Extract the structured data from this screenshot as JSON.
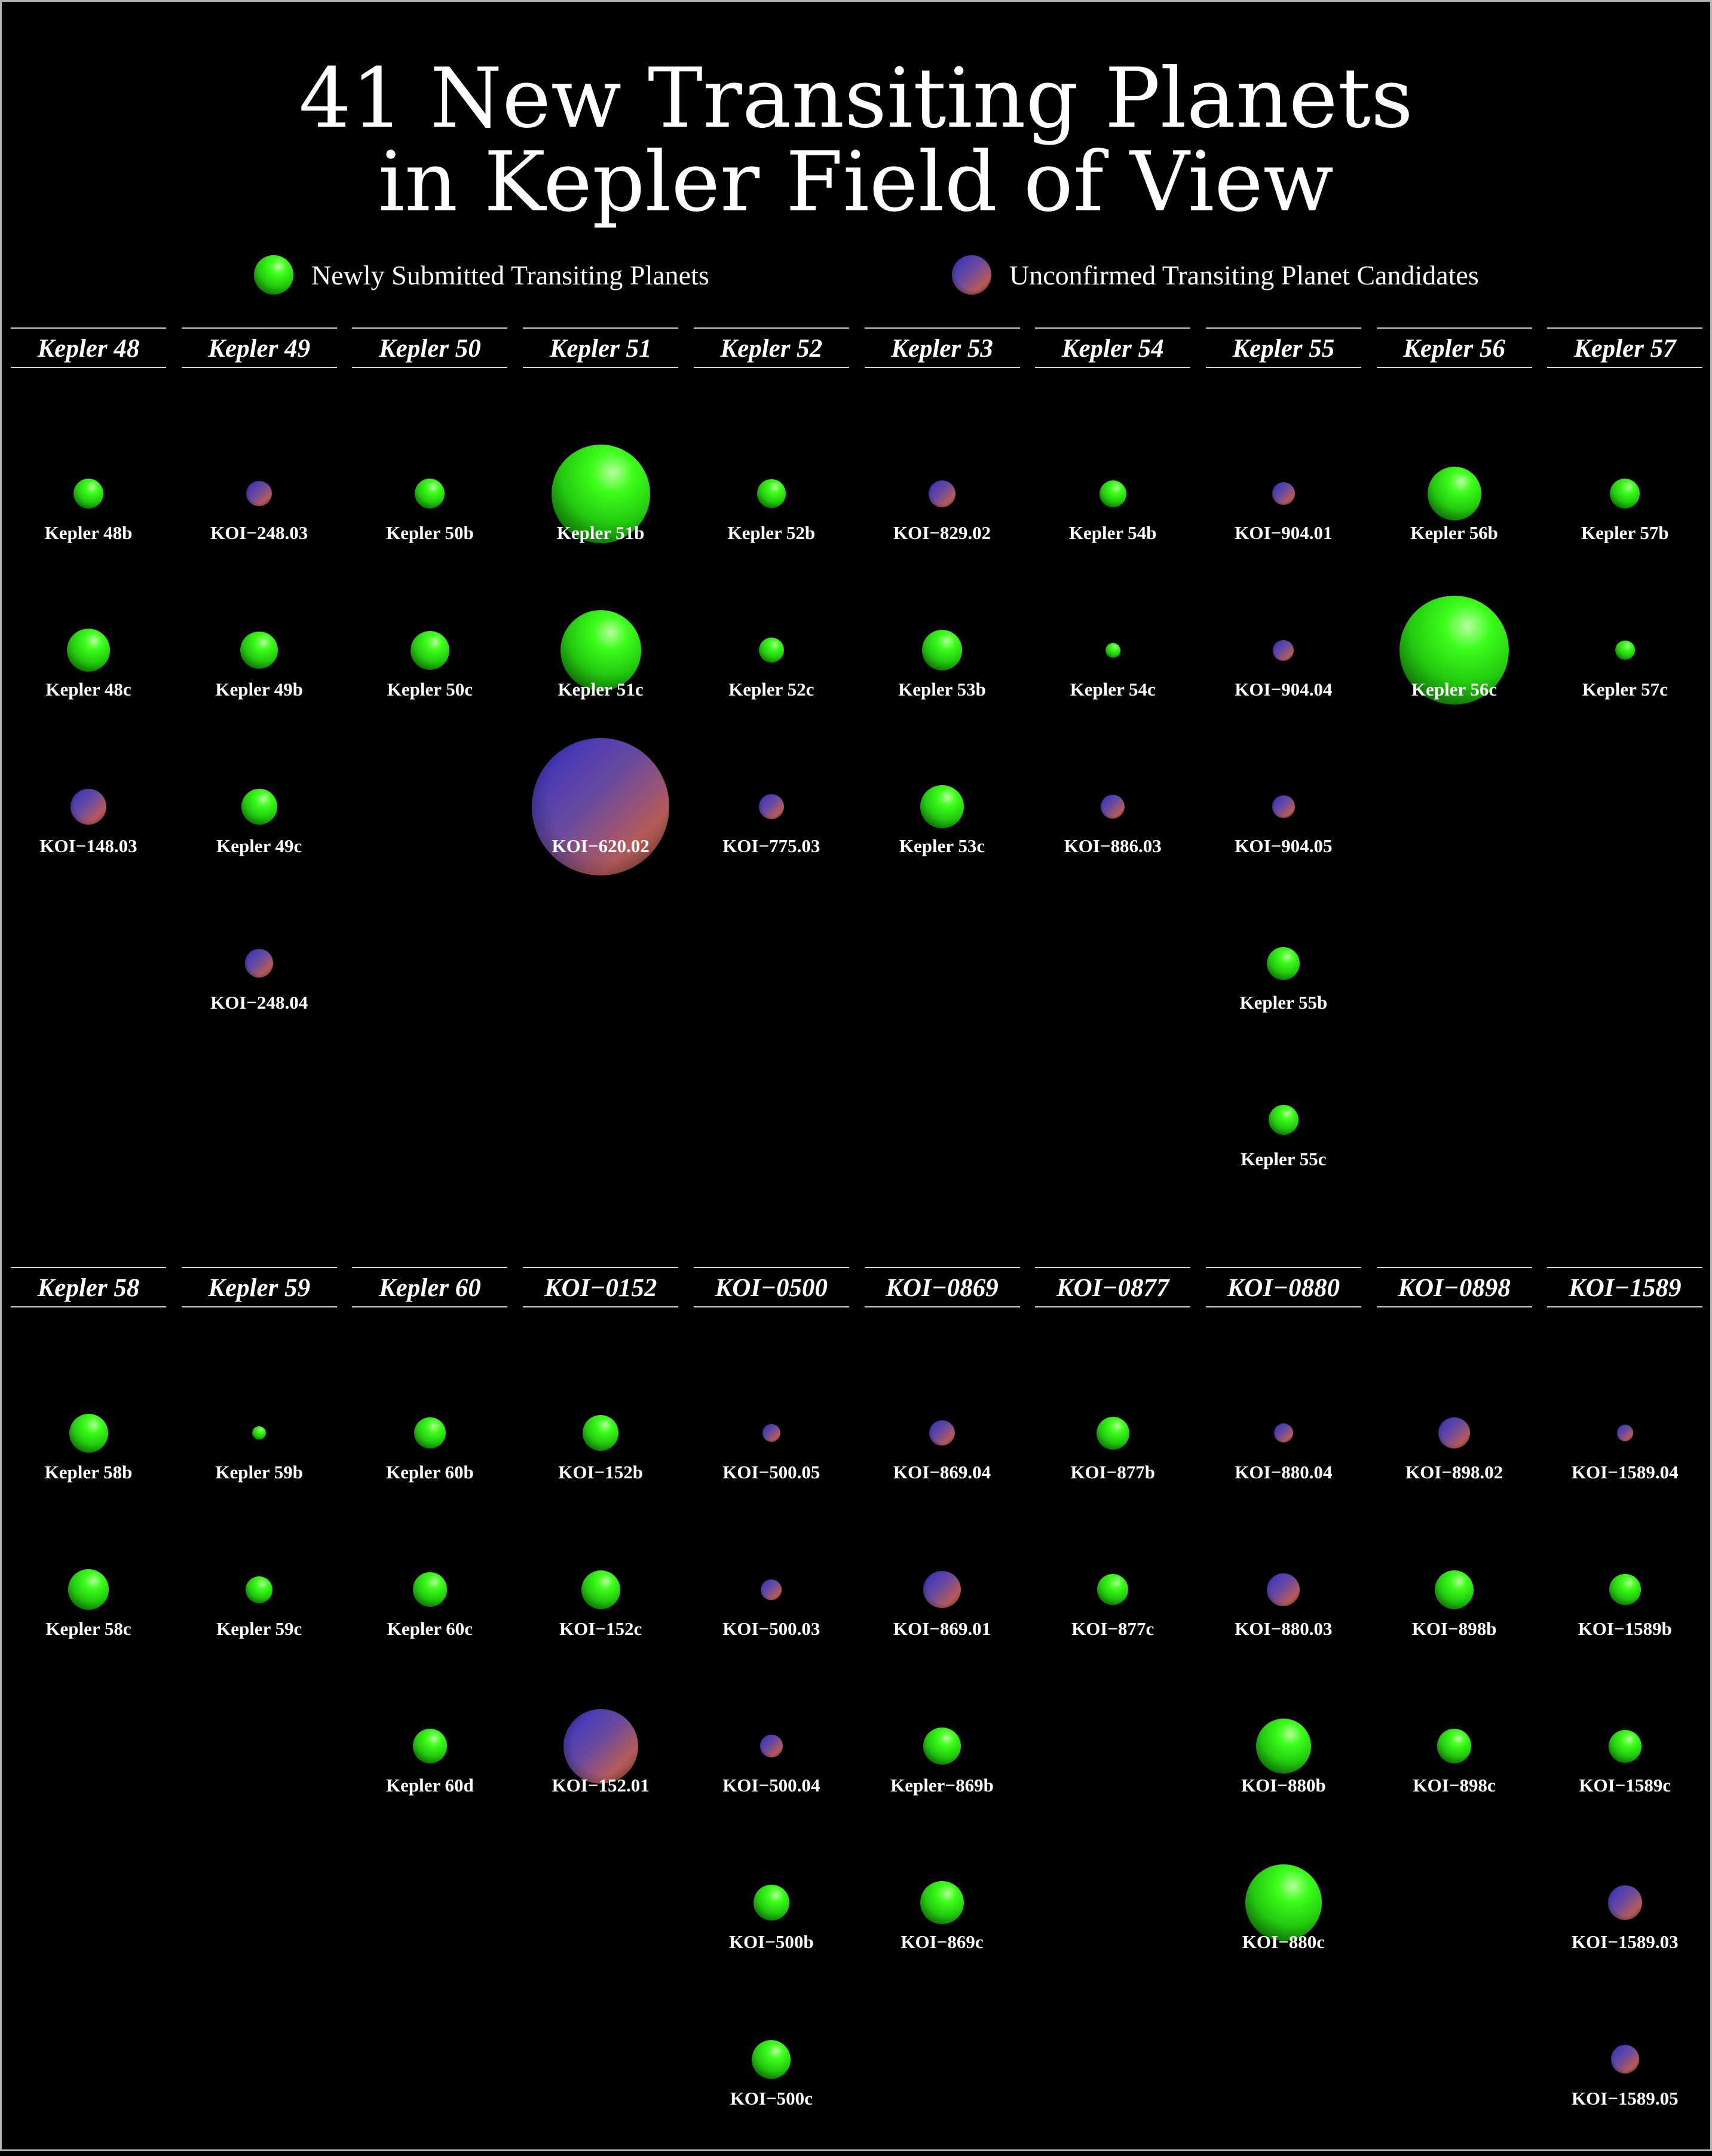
{
  "title": {
    "line1": "41 New Transiting Planets",
    "line2": "in Kepler Field of View"
  },
  "legend": [
    {
      "label": "Newly Submitted Transiting Planets",
      "kind": "green"
    },
    {
      "label": "Unconfirmed Transiting Planet Candidates",
      "kind": "cand"
    }
  ],
  "colors": {
    "confirmed": "#33ff1a",
    "candidate": "#6a4a9d",
    "background": "#000000",
    "text": "#ffffff"
  },
  "systems": [
    {
      "name": "Kepler 48",
      "planets": [
        {
          "label": "Kepler 48b",
          "kind": "green",
          "size": 1.0
        },
        {
          "label": "Kepler 48c",
          "kind": "green",
          "size": 1.45
        },
        {
          "label": "KOI−148.03",
          "kind": "cand",
          "size": 1.2
        }
      ]
    },
    {
      "name": "Kepler 49",
      "planets": [
        {
          "label": "KOI−248.03",
          "kind": "cand",
          "size": 0.85
        },
        {
          "label": "Kepler 49b",
          "kind": "green",
          "size": 1.25
        },
        {
          "label": "Kepler 49c",
          "kind": "green",
          "size": 1.2
        },
        {
          "label": "KOI−248.04",
          "kind": "cand",
          "size": 0.95
        }
      ]
    },
    {
      "name": "Kepler 50",
      "planets": [
        {
          "label": "Kepler 50b",
          "kind": "green",
          "size": 1.0
        },
        {
          "label": "Kepler 50c",
          "kind": "green",
          "size": 1.3
        }
      ]
    },
    {
      "name": "Kepler 51",
      "planets": [
        {
          "label": "Kepler 51b",
          "kind": "green",
          "size": 3.3
        },
        {
          "label": "Kepler 51c",
          "kind": "green",
          "size": 2.7
        },
        {
          "label": "KOI−620.02",
          "kind": "cand",
          "size": 4.6
        }
      ]
    },
    {
      "name": "Kepler 52",
      "planets": [
        {
          "label": "Kepler 52b",
          "kind": "green",
          "size": 0.95
        },
        {
          "label": "Kepler 52c",
          "kind": "green",
          "size": 0.85
        },
        {
          "label": "KOI−775.03",
          "kind": "cand",
          "size": 0.85
        }
      ]
    },
    {
      "name": "Kepler 53",
      "planets": [
        {
          "label": "KOI−829.02",
          "kind": "cand",
          "size": 0.9
        },
        {
          "label": "Kepler 53b",
          "kind": "green",
          "size": 1.35
        },
        {
          "label": "Kepler 53c",
          "kind": "green",
          "size": 1.45
        }
      ]
    },
    {
      "name": "Kepler 54",
      "planets": [
        {
          "label": "Kepler 54b",
          "kind": "green",
          "size": 0.9
        },
        {
          "label": "Kepler 54c",
          "kind": "green",
          "size": 0.5
        },
        {
          "label": "KOI−886.03",
          "kind": "cand",
          "size": 0.8
        }
      ]
    },
    {
      "name": "Kepler 55",
      "planets": [
        {
          "label": "KOI−904.01",
          "kind": "cand",
          "size": 0.75
        },
        {
          "label": "KOI−904.04",
          "kind": "cand",
          "size": 0.7
        },
        {
          "label": "KOI−904.05",
          "kind": "cand",
          "size": 0.75
        },
        {
          "label": "Kepler 55b",
          "kind": "green",
          "size": 1.1
        },
        {
          "label": "Kepler 55c",
          "kind": "green",
          "size": 1.0
        }
      ]
    },
    {
      "name": "Kepler 56",
      "planets": [
        {
          "label": "Kepler 56b",
          "kind": "green",
          "size": 1.8
        },
        {
          "label": "Kepler 56c",
          "kind": "green",
          "size": 3.65
        }
      ]
    },
    {
      "name": "Kepler 57",
      "planets": [
        {
          "label": "Kepler 57b",
          "kind": "green",
          "size": 1.0
        },
        {
          "label": "Kepler 57c",
          "kind": "green",
          "size": 0.65
        }
      ]
    },
    {
      "name": "Kepler 58",
      "planets": [
        {
          "label": "Kepler 58b",
          "kind": "green",
          "size": 1.3
        },
        {
          "label": "Kepler 58c",
          "kind": "green",
          "size": 1.35
        }
      ]
    },
    {
      "name": "Kepler 59",
      "planets": [
        {
          "label": "Kepler 59b",
          "kind": "green",
          "size": 0.45
        },
        {
          "label": "Kepler 59c",
          "kind": "green",
          "size": 0.9
        }
      ]
    },
    {
      "name": "Kepler 60",
      "planets": [
        {
          "label": "Kepler 60b",
          "kind": "green",
          "size": 1.05
        },
        {
          "label": "Kepler 60c",
          "kind": "green",
          "size": 1.15
        },
        {
          "label": "Kepler 60d",
          "kind": "green",
          "size": 1.15
        }
      ]
    },
    {
      "name": "KOI−0152",
      "planets": [
        {
          "label": "KOI−152b",
          "kind": "green",
          "size": 1.2
        },
        {
          "label": "KOI−152c",
          "kind": "green",
          "size": 1.3
        },
        {
          "label": "KOI−152.01",
          "kind": "cand",
          "size": 2.5
        }
      ]
    },
    {
      "name": "KOI−0500",
      "planets": [
        {
          "label": "KOI−500.05",
          "kind": "cand",
          "size": 0.6
        },
        {
          "label": "KOI−500.03",
          "kind": "cand",
          "size": 0.7
        },
        {
          "label": "KOI−500.04",
          "kind": "cand",
          "size": 0.75
        },
        {
          "label": "KOI−500b",
          "kind": "green",
          "size": 1.2
        },
        {
          "label": "KOI−500c",
          "kind": "green",
          "size": 1.3
        }
      ]
    },
    {
      "name": "KOI−0869",
      "planets": [
        {
          "label": "KOI−869.04",
          "kind": "cand",
          "size": 0.85
        },
        {
          "label": "KOI−869.01",
          "kind": "cand",
          "size": 1.25
        },
        {
          "label": "Kepler−869b",
          "kind": "green",
          "size": 1.25
        },
        {
          "label": "KOI−869c",
          "kind": "green",
          "size": 1.45
        }
      ]
    },
    {
      "name": "KOI−0877",
      "planets": [
        {
          "label": "KOI−877b",
          "kind": "green",
          "size": 1.1
        },
        {
          "label": "KOI−877c",
          "kind": "green",
          "size": 1.05
        }
      ]
    },
    {
      "name": "KOI−0880",
      "planets": [
        {
          "label": "KOI−880.04",
          "kind": "cand",
          "size": 0.65
        },
        {
          "label": "KOI−880.03",
          "kind": "cand",
          "size": 1.1
        },
        {
          "label": "KOI−880b",
          "kind": "green",
          "size": 1.85
        },
        {
          "label": "KOI−880c",
          "kind": "green",
          "size": 2.55
        }
      ]
    },
    {
      "name": "KOI−0898",
      "planets": [
        {
          "label": "KOI−898.02",
          "kind": "cand",
          "size": 1.05
        },
        {
          "label": "KOI−898b",
          "kind": "green",
          "size": 1.3
        },
        {
          "label": "KOI−898c",
          "kind": "green",
          "size": 1.15
        }
      ]
    },
    {
      "name": "KOI−1589",
      "planets": [
        {
          "label": "KOI−1589.04",
          "kind": "cand",
          "size": 0.55
        },
        {
          "label": "KOI−1589b",
          "kind": "green",
          "size": 1.05
        },
        {
          "label": "KOI−1589c",
          "kind": "green",
          "size": 1.1
        },
        {
          "label": "KOI−1589.03",
          "kind": "cand",
          "size": 1.15
        },
        {
          "label": "KOI−1589.05",
          "kind": "cand",
          "size": 0.95
        }
      ]
    }
  ]
}
